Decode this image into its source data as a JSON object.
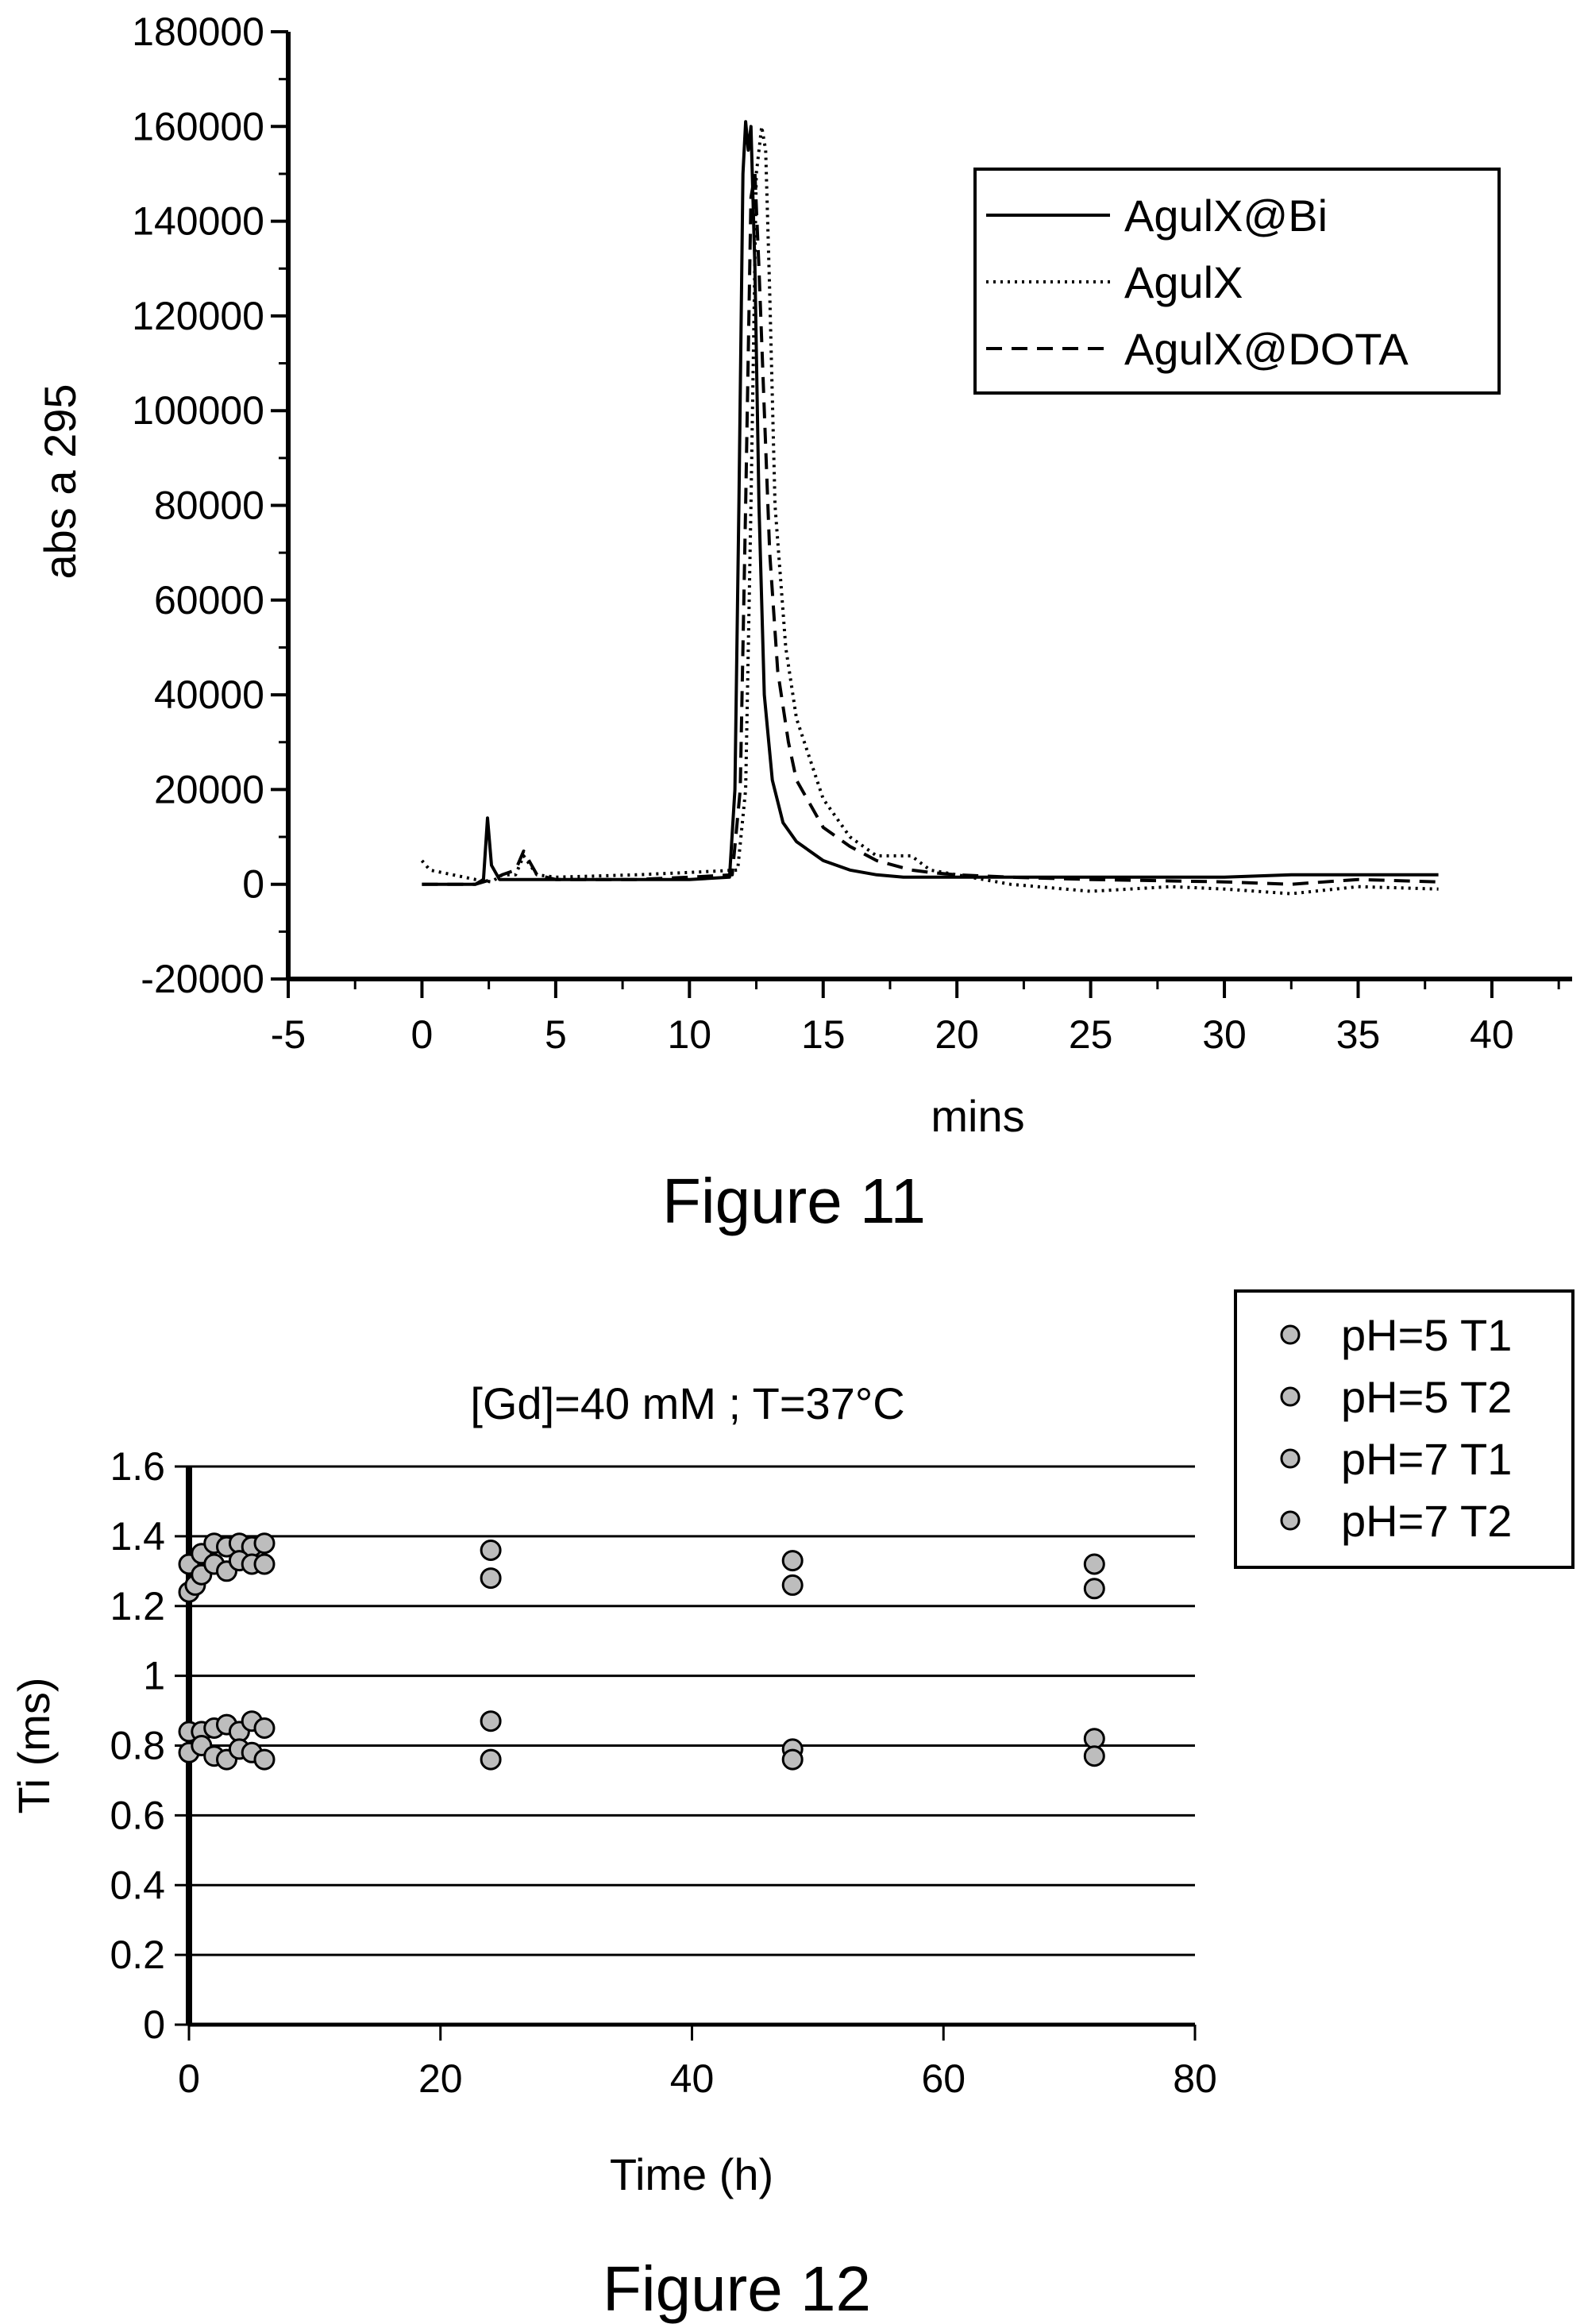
{
  "chart_data": [
    {
      "type": "line",
      "caption": "Figure 11",
      "xlabel": "mins",
      "ylabel": "abs a 295",
      "xlim": [
        -5,
        43
      ],
      "ylim": [
        -20000,
        180000
      ],
      "xticks": [
        -5,
        0,
        5,
        10,
        15,
        20,
        25,
        30,
        35,
        40
      ],
      "yticks": [
        -20000,
        0,
        20000,
        40000,
        60000,
        80000,
        100000,
        120000,
        140000,
        160000,
        180000
      ],
      "grid": false,
      "legend": "top-right",
      "series": [
        {
          "name": "AgulX@Bi",
          "style": "solid",
          "x": [
            0,
            2.0,
            2.3,
            2.45,
            2.6,
            2.9,
            5,
            8,
            10,
            11.5,
            11.7,
            11.85,
            12.0,
            12.1,
            12.2,
            12.3,
            12.45,
            12.6,
            12.8,
            13.1,
            13.5,
            14,
            15,
            16,
            17,
            18,
            20,
            25,
            30,
            32.5,
            38
          ],
          "y": [
            0,
            0,
            1000,
            14000,
            4000,
            1000,
            1000,
            1000,
            1000,
            1500,
            20000,
            80000,
            150000,
            161000,
            155000,
            160000,
            130000,
            80000,
            40000,
            22000,
            13000,
            9000,
            5000,
            3000,
            2000,
            1500,
            1500,
            1500,
            1500,
            2000,
            2000
          ]
        },
        {
          "name": "AgulX",
          "style": "dotted",
          "x": [
            0,
            0.3,
            2.0,
            2.6,
            3.0,
            3.5,
            3.8,
            4.3,
            5,
            8,
            10,
            11.8,
            12.1,
            12.3,
            12.5,
            12.7,
            12.85,
            13.0,
            13.2,
            13.6,
            14,
            15,
            16,
            17,
            18.3,
            19,
            20,
            22,
            25,
            28,
            30,
            32.5,
            35,
            38
          ],
          "y": [
            5000,
            3000,
            1000,
            500,
            2000,
            2000,
            6000,
            2000,
            1500,
            2000,
            2500,
            3000,
            20000,
            80000,
            150000,
            160000,
            155000,
            125000,
            80000,
            50000,
            35000,
            18000,
            10000,
            6000,
            6000,
            3000,
            2000,
            0,
            -1500,
            -500,
            -1000,
            -2000,
            -500,
            -1000
          ]
        },
        {
          "name": "AgulX@DOTA",
          "style": "dashed",
          "x": [
            0,
            2.0,
            2.6,
            3.0,
            3.5,
            3.8,
            4.3,
            5,
            8,
            10,
            11.6,
            11.9,
            12.1,
            12.3,
            12.45,
            12.6,
            12.8,
            13.0,
            13.3,
            13.7,
            14,
            15,
            16,
            17,
            18.3,
            19,
            20,
            22,
            25,
            30,
            32.5,
            35,
            38
          ],
          "y": [
            0,
            0,
            1000,
            2000,
            3000,
            7000,
            2000,
            1000,
            1000,
            1500,
            2000,
            20000,
            80000,
            145000,
            150000,
            130000,
            100000,
            70000,
            45000,
            30000,
            22000,
            12000,
            8000,
            5000,
            3000,
            2500,
            2000,
            1500,
            1000,
            500,
            0,
            1000,
            500
          ]
        }
      ]
    },
    {
      "type": "scatter",
      "caption": "Figure 12",
      "title": "[Gd]=40 mM ; T=37°C",
      "xlabel": "Time (h)",
      "ylabel": "Ti (ms)",
      "xlim": [
        0,
        80
      ],
      "ylim": [
        0,
        1.6
      ],
      "xticks": [
        0,
        20,
        40,
        60,
        80
      ],
      "yticks": [
        0,
        0.2,
        0.4,
        0.6,
        0.8,
        1,
        1.2,
        1.4,
        1.6
      ],
      "ytick_labels": [
        "0",
        "0.2",
        "0.4",
        "0.6",
        "0.8",
        "1",
        "1.2",
        "1.4",
        "1.6"
      ],
      "grid": true,
      "legend": "top-right",
      "series": [
        {
          "name": "pH=5 T1",
          "x": [
            0,
            1,
            2,
            3,
            4,
            5,
            6,
            24,
            48,
            72
          ],
          "y": [
            1.32,
            1.35,
            1.38,
            1.37,
            1.38,
            1.37,
            1.38,
            1.36,
            1.33,
            1.32
          ]
        },
        {
          "name": "pH=5 T2",
          "x": [
            0,
            1,
            2,
            3,
            4,
            5,
            6,
            24,
            48,
            72
          ],
          "y": [
            0.84,
            0.84,
            0.85,
            0.86,
            0.84,
            0.87,
            0.85,
            0.87,
            0.79,
            0.82
          ]
        },
        {
          "name": "pH=7 T1",
          "x": [
            0,
            0.5,
            1,
            2,
            3,
            4,
            5,
            6,
            24,
            48,
            72
          ],
          "y": [
            1.24,
            1.26,
            1.29,
            1.32,
            1.3,
            1.33,
            1.32,
            1.32,
            1.28,
            1.26,
            1.25
          ]
        },
        {
          "name": "pH=7 T2",
          "x": [
            0,
            1,
            2,
            3,
            4,
            5,
            6,
            24,
            48,
            72
          ],
          "y": [
            0.78,
            0.8,
            0.77,
            0.76,
            0.79,
            0.78,
            0.76,
            0.76,
            0.76,
            0.77
          ]
        }
      ]
    }
  ],
  "colors": {
    "ink": "#000000",
    "gridline": "#000000",
    "marker_fill": "#bdbdbd",
    "marker_stroke": "#000000"
  }
}
